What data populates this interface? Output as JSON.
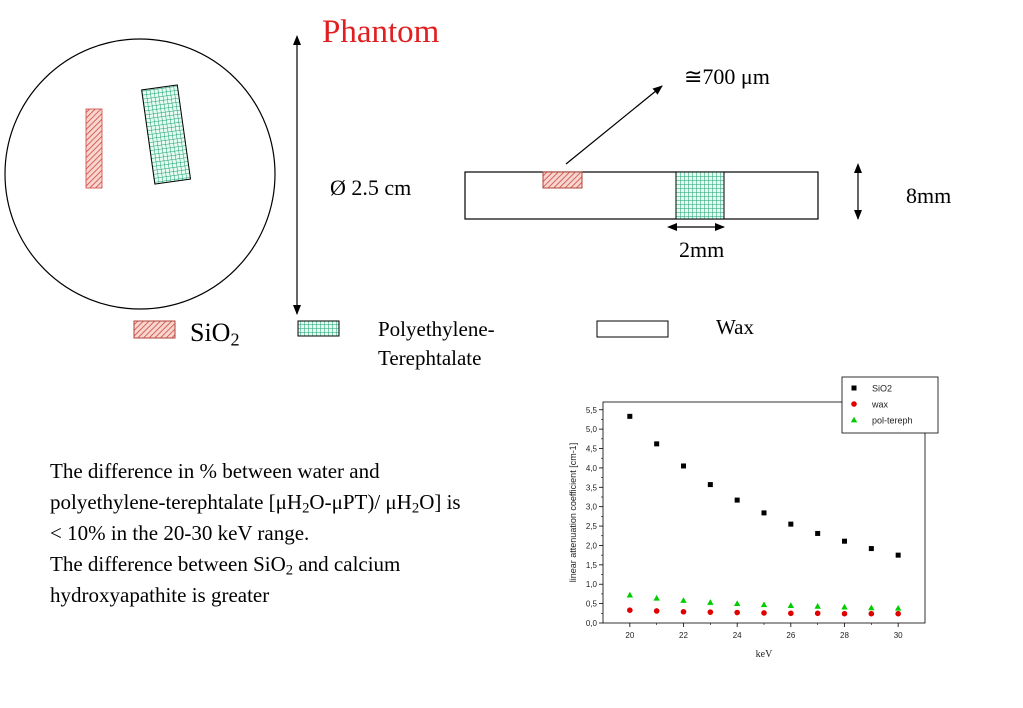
{
  "slide": {
    "title": "Phantom",
    "title_color": "#e02020"
  },
  "phantom_diagram": {
    "diameter_label": "Ø 2.5 cm",
    "thickness_label": "≅700 μm",
    "height_label": "8mm",
    "width_label": "2mm"
  },
  "legend_materials": {
    "sio2": {
      "name": "SiO",
      "sub": "2",
      "color": "#cc3333"
    },
    "pet": {
      "line1": "Polyethylene-",
      "line2": "Terephtalate",
      "color": "#1aa37a"
    },
    "wax": {
      "name": "Wax"
    }
  },
  "notes": {
    "line1_pre": "The difference in %  between water and polyethylene-terephtalate [μH",
    "line1_sub1": "2",
    "line1_mid": "O-μPT)/ μH",
    "line1_sub2": "2",
    "line1_post": "O] is < 10% in the 20-30 keV range.",
    "line2_pre": "The difference between SiO",
    "line2_sub": "2",
    "line2_post": " and calcium hydroxyapathite is greater"
  },
  "chart_data": {
    "type": "scatter",
    "xlabel": "keV",
    "ylabel": "linear attenuation coefficient [cm-1]",
    "xlim": [
      19,
      31
    ],
    "ylim": [
      0,
      5.7
    ],
    "xticks": [
      "20",
      "22",
      "24",
      "26",
      "28",
      "30"
    ],
    "yticks": [
      "0,0",
      "0,5",
      "1,0",
      "1,5",
      "2,0",
      "2,5",
      "3,0",
      "3,5",
      "4,0",
      "4,5",
      "5,0",
      "5,5"
    ],
    "legend_position": "top-right",
    "x": [
      20,
      21,
      22,
      23,
      24,
      25,
      26,
      27,
      28,
      29,
      30
    ],
    "series": [
      {
        "name": "SiO2",
        "color": "#000000",
        "marker": "square",
        "values": [
          5.33,
          4.62,
          4.05,
          3.57,
          3.17,
          2.84,
          2.55,
          2.31,
          2.11,
          1.92,
          1.75
        ]
      },
      {
        "name": "wax",
        "color": "#e00000",
        "marker": "circle",
        "values": [
          0.33,
          0.31,
          0.29,
          0.28,
          0.27,
          0.26,
          0.25,
          0.25,
          0.24,
          0.24,
          0.24
        ]
      },
      {
        "name": "pol-tereph",
        "color": "#00cc00",
        "marker": "triangle",
        "values": [
          0.72,
          0.64,
          0.58,
          0.53,
          0.5,
          0.47,
          0.45,
          0.43,
          0.41,
          0.39,
          0.38
        ]
      }
    ]
  }
}
